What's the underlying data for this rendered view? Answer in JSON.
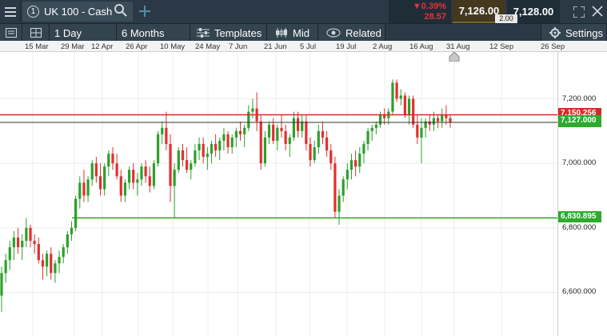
{
  "header": {
    "tab_number": "1",
    "instrument": "UK 100 - Cash",
    "change_pct": "▼0.39%",
    "change_abs": "28.57",
    "sell_price": "7,126.00",
    "buy_price": "7,128.00",
    "spread": "2.00"
  },
  "toolbar": {
    "interval": "1 Day",
    "range": "6 Months",
    "templates": "Templates",
    "price_type": "Mid",
    "related": "Related",
    "settings": "Settings"
  },
  "colors": {
    "bar": "#2a3945",
    "up": "#2ca02c",
    "down": "#e03030",
    "sell_bg": "#44391f",
    "price_label": "#2eaa2e",
    "resistance": "#d42a2a"
  },
  "icons": [
    "hamburger-icon",
    "search-icon",
    "plus-icon",
    "expand-icon",
    "close-icon",
    "layout-icon",
    "grid-icon",
    "templates-icon",
    "candles-icon",
    "eye-icon",
    "settings-icon",
    "event-marker-icon"
  ],
  "chart_data": {
    "type": "candlestick",
    "x_labels": [
      "15 Mar",
      "29 Mar",
      "12 Apr",
      "26 Apr",
      "10 May",
      "24 May",
      "7 Jun",
      "21 Jun",
      "5 Jul",
      "19 Jul",
      "2 Aug",
      "16 Aug",
      "31 Aug",
      "12 Sep",
      "26 Sep"
    ],
    "y_tick_labels": [
      "7,200.000",
      "7,000.000",
      "6,800.000",
      "6,600.000"
    ],
    "y_ticks": [
      7200,
      7000,
      6800,
      6600
    ],
    "ylim": [
      6465,
      7345
    ],
    "current_price": 7127.0,
    "current_price_label": "7,127.000",
    "resistance_label": "7,150.256",
    "resistance_line": 7150.256,
    "support_line": 6830.895,
    "support_label": "6,830.895",
    "ohlc": [
      [
        6590,
        6680,
        6540,
        6660
      ],
      [
        6660,
        6720,
        6630,
        6700
      ],
      [
        6700,
        6760,
        6670,
        6740
      ],
      [
        6740,
        6790,
        6700,
        6770
      ],
      [
        6770,
        6800,
        6720,
        6740
      ],
      [
        6740,
        6780,
        6700,
        6760
      ],
      [
        6760,
        6830,
        6740,
        6800
      ],
      [
        6800,
        6810,
        6740,
        6760
      ],
      [
        6760,
        6780,
        6720,
        6750
      ],
      [
        6750,
        6770,
        6690,
        6700
      ],
      [
        6700,
        6720,
        6640,
        6680
      ],
      [
        6680,
        6730,
        6650,
        6720
      ],
      [
        6720,
        6740,
        6640,
        6660
      ],
      [
        6660,
        6700,
        6630,
        6690
      ],
      [
        6690,
        6730,
        6660,
        6710
      ],
      [
        6710,
        6750,
        6690,
        6740
      ],
      [
        6740,
        6790,
        6720,
        6780
      ],
      [
        6780,
        6820,
        6760,
        6800
      ],
      [
        6800,
        6900,
        6790,
        6890
      ],
      [
        6890,
        6960,
        6860,
        6940
      ],
      [
        6940,
        6980,
        6880,
        6900
      ],
      [
        6900,
        6960,
        6880,
        6950
      ],
      [
        6950,
        7010,
        6930,
        7000
      ],
      [
        7000,
        7020,
        6940,
        6960
      ],
      [
        6960,
        7000,
        6900,
        6920
      ],
      [
        6920,
        7000,
        6900,
        6990
      ],
      [
        6990,
        7040,
        6960,
        7030
      ],
      [
        7030,
        7050,
        6980,
        7000
      ],
      [
        7000,
        7030,
        6950,
        6960
      ],
      [
        6960,
        6980,
        6880,
        6900
      ],
      [
        6900,
        6950,
        6880,
        6940
      ],
      [
        6940,
        6990,
        6920,
        6980
      ],
      [
        6980,
        7000,
        6920,
        6940
      ],
      [
        6940,
        6970,
        6900,
        6950
      ],
      [
        6950,
        7000,
        6930,
        6990
      ],
      [
        6990,
        7010,
        6940,
        6960
      ],
      [
        6960,
        6990,
        6910,
        6930
      ],
      [
        6930,
        7010,
        6920,
        7000
      ],
      [
        7000,
        7100,
        6990,
        7090
      ],
      [
        7090,
        7130,
        7060,
        7110
      ],
      [
        7110,
        7160,
        7040,
        7060
      ],
      [
        7060,
        7090,
        6880,
        6930
      ],
      [
        6930,
        7000,
        6830,
        6980
      ],
      [
        6980,
        7050,
        6970,
        7040
      ],
      [
        7040,
        7060,
        6990,
        7010
      ],
      [
        7010,
        7050,
        6970,
        6980
      ],
      [
        6980,
        7010,
        6950,
        7000
      ],
      [
        7000,
        7060,
        6990,
        7040
      ],
      [
        7040,
        7080,
        7010,
        7060
      ],
      [
        7060,
        7080,
        7000,
        7020
      ],
      [
        7020,
        7050,
        6980,
        7030
      ],
      [
        7030,
        7070,
        7000,
        7060
      ],
      [
        7060,
        7090,
        7020,
        7040
      ],
      [
        7040,
        7080,
        7010,
        7070
      ],
      [
        7070,
        7110,
        7040,
        7090
      ],
      [
        7090,
        7100,
        7030,
        7050
      ],
      [
        7050,
        7090,
        7030,
        7080
      ],
      [
        7080,
        7110,
        7050,
        7100
      ],
      [
        7100,
        7130,
        7070,
        7090
      ],
      [
        7090,
        7120,
        7050,
        7110
      ],
      [
        7110,
        7180,
        7100,
        7160
      ],
      [
        7160,
        7200,
        7140,
        7170
      ],
      [
        7170,
        7220,
        7100,
        7130
      ],
      [
        7130,
        7150,
        6980,
        7000
      ],
      [
        7000,
        7100,
        6990,
        7080
      ],
      [
        7080,
        7130,
        7060,
        7120
      ],
      [
        7120,
        7140,
        7060,
        7070
      ],
      [
        7070,
        7120,
        7040,
        7110
      ],
      [
        7110,
        7150,
        7080,
        7100
      ],
      [
        7100,
        7120,
        7040,
        7060
      ],
      [
        7060,
        7090,
        7020,
        7080
      ],
      [
        7080,
        7160,
        7070,
        7140
      ],
      [
        7140,
        7160,
        7080,
        7100
      ],
      [
        7100,
        7150,
        7080,
        7130
      ],
      [
        7130,
        7150,
        7040,
        7060
      ],
      [
        7060,
        7080,
        6990,
        7010
      ],
      [
        7010,
        7070,
        7000,
        7050
      ],
      [
        7050,
        7120,
        7030,
        7100
      ],
      [
        7100,
        7130,
        7060,
        7080
      ],
      [
        7080,
        7100,
        7020,
        7040
      ],
      [
        7040,
        7060,
        6980,
        7000
      ],
      [
        7000,
        7020,
        6830,
        6850
      ],
      [
        6850,
        6920,
        6810,
        6900
      ],
      [
        6900,
        6960,
        6880,
        6950
      ],
      [
        6950,
        7000,
        6920,
        6980
      ],
      [
        6980,
        7030,
        6950,
        7010
      ],
      [
        7010,
        7040,
        6960,
        6990
      ],
      [
        6990,
        7050,
        6970,
        7030
      ],
      [
        7030,
        7070,
        7000,
        7060
      ],
      [
        7060,
        7110,
        7040,
        7100
      ],
      [
        7100,
        7120,
        7070,
        7110
      ],
      [
        7110,
        7130,
        7090,
        7120
      ],
      [
        7120,
        7160,
        7110,
        7150
      ],
      [
        7150,
        7170,
        7120,
        7140
      ],
      [
        7140,
        7170,
        7120,
        7160
      ],
      [
        7160,
        7260,
        7150,
        7250
      ],
      [
        7250,
        7260,
        7190,
        7200
      ],
      [
        7200,
        7230,
        7180,
        7210
      ],
      [
        7210,
        7220,
        7140,
        7150
      ],
      [
        7150,
        7210,
        7120,
        7200
      ],
      [
        7200,
        7210,
        7110,
        7120
      ],
      [
        7120,
        7150,
        7060,
        7080
      ],
      [
        7080,
        7140,
        7000,
        7110
      ],
      [
        7110,
        7140,
        7080,
        7130
      ],
      [
        7130,
        7150,
        7100,
        7120
      ],
      [
        7120,
        7160,
        7100,
        7140
      ],
      [
        7140,
        7150,
        7110,
        7130
      ],
      [
        7130,
        7170,
        7110,
        7150
      ],
      [
        7150,
        7180,
        7120,
        7140
      ],
      [
        7140,
        7150,
        7110,
        7127
      ]
    ]
  }
}
